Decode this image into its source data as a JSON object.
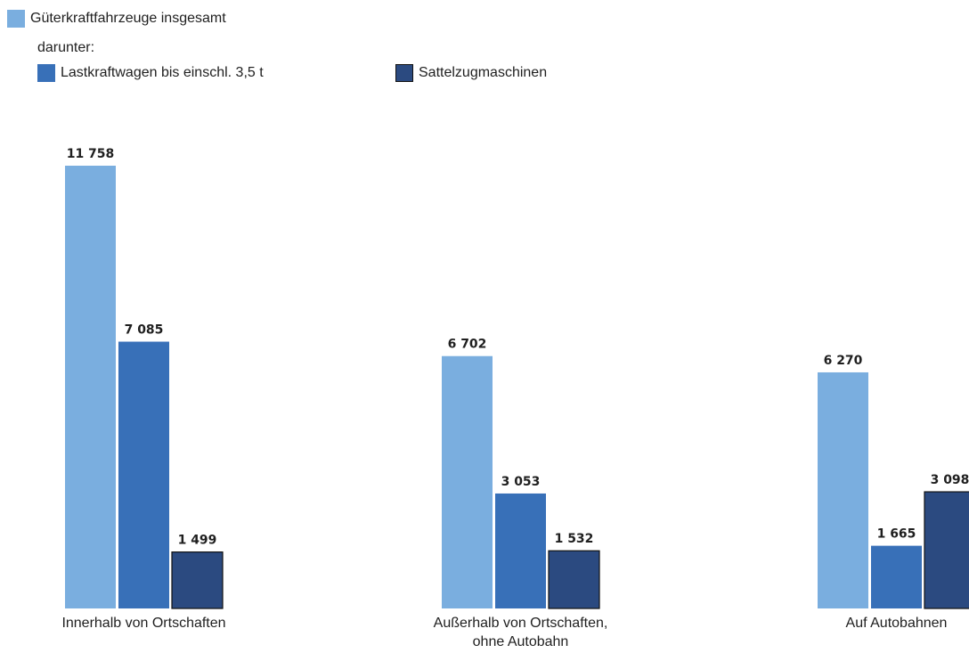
{
  "chart_data": {
    "type": "bar",
    "categories": [
      [
        "Innerhalb von Ortschaften"
      ],
      [
        "Außerhalb von Ortschaften,",
        "ohne Autobahn"
      ],
      [
        "Auf Autobahnen"
      ]
    ],
    "series": [
      {
        "name": "Güterkraftfahrzeuge insgesamt",
        "color": "#7aaedf",
        "values": [
          11758,
          6702,
          6270
        ],
        "labels": [
          "11 758",
          "6 702",
          "6 270"
        ]
      },
      {
        "name": "Lastkraftwagen bis einschl. 3,5 t",
        "color": "#3870b8",
        "values": [
          7085,
          3053,
          1665
        ],
        "labels": [
          "7 085",
          "3 053",
          "1 665"
        ]
      },
      {
        "name": "Sattelzugmaschinen",
        "color": "#2b4a80",
        "values": [
          1499,
          1532,
          3098
        ],
        "labels": [
          "1 499",
          "1 532",
          "3 098"
        ]
      }
    ],
    "legend_subheading": "darunter:",
    "title": "",
    "xlabel": "",
    "ylabel": "",
    "ylim": [
      0,
      11758
    ],
    "grid": false,
    "legend_position": "top-left"
  }
}
